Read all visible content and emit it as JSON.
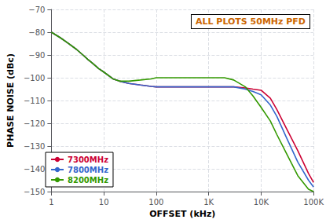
{
  "chart_data": {
    "type": "line",
    "annotation": "ALL PLOTS 50MHz PFD",
    "x_label": "OFFSET (kHz)",
    "y_label": "PHASE NOISE (dBc)",
    "log": "x",
    "grid": true,
    "legend": "lower left",
    "xlim": [
      1,
      100000
    ],
    "xticks": [
      1,
      10,
      100,
      {
        "value": 1000,
        "label": "1K"
      },
      {
        "value": 10000,
        "label": "10K"
      },
      {
        "value": 100000,
        "label": "100K"
      }
    ],
    "ylim": [
      -150,
      -70
    ],
    "yticks": [
      {
        "value": -150,
        "label": "−150"
      },
      {
        "value": -140,
        "label": "−140"
      },
      {
        "value": -130,
        "label": "−130"
      },
      {
        "value": -120,
        "label": "−120"
      },
      {
        "value": -110,
        "label": "−110"
      },
      {
        "value": -100,
        "label": "−100"
      },
      {
        "value": -90,
        "label": "−90"
      },
      {
        "value": -80,
        "label": "−80"
      },
      {
        "value": -70,
        "label": "−70"
      }
    ],
    "x": [
      1,
      1.5,
      2,
      3,
      4,
      5,
      6,
      8,
      10,
      15,
      20,
      30,
      50,
      80,
      100,
      200,
      300,
      500,
      1000,
      2000,
      3000,
      5000,
      7000,
      10000,
      15000,
      20000,
      30000,
      50000,
      80000,
      100000
    ],
    "series": [
      {
        "name": "7300MHz",
        "color": "#cc0033",
        "values": [
          -80,
          -82.5,
          -84.5,
          -87.5,
          -90,
          -92,
          -93.5,
          -96,
          -97.5,
          -100.5,
          -101.5,
          -102.5,
          -103.2,
          -103.8,
          -104,
          -104,
          -104,
          -104,
          -104,
          -104,
          -104,
          -104.5,
          -105,
          -105.5,
          -109,
          -114,
          -122,
          -132,
          -142,
          -146
        ]
      },
      {
        "name": "7800MHz",
        "color": "#3366cc",
        "values": [
          -80,
          -82.5,
          -84.5,
          -87.5,
          -90,
          -92,
          -93.5,
          -96,
          -97.5,
          -100.5,
          -101.5,
          -102.5,
          -103.2,
          -103.8,
          -104,
          -104,
          -104,
          -104,
          -104,
          -104,
          -104,
          -105,
          -106,
          -107.5,
          -112,
          -117,
          -126,
          -137,
          -145,
          -148
        ]
      },
      {
        "name": "8200MHz",
        "color": "#339900",
        "values": [
          -80,
          -82.5,
          -84.5,
          -87.5,
          -90,
          -92,
          -93.5,
          -96,
          -97.5,
          -100.5,
          -101.5,
          -101.5,
          -101,
          -100.5,
          -100,
          -100,
          -100,
          -100,
          -100,
          -100,
          -101,
          -104,
          -108,
          -113,
          -119,
          -125,
          -133,
          -143,
          -149,
          -150
        ]
      }
    ]
  }
}
